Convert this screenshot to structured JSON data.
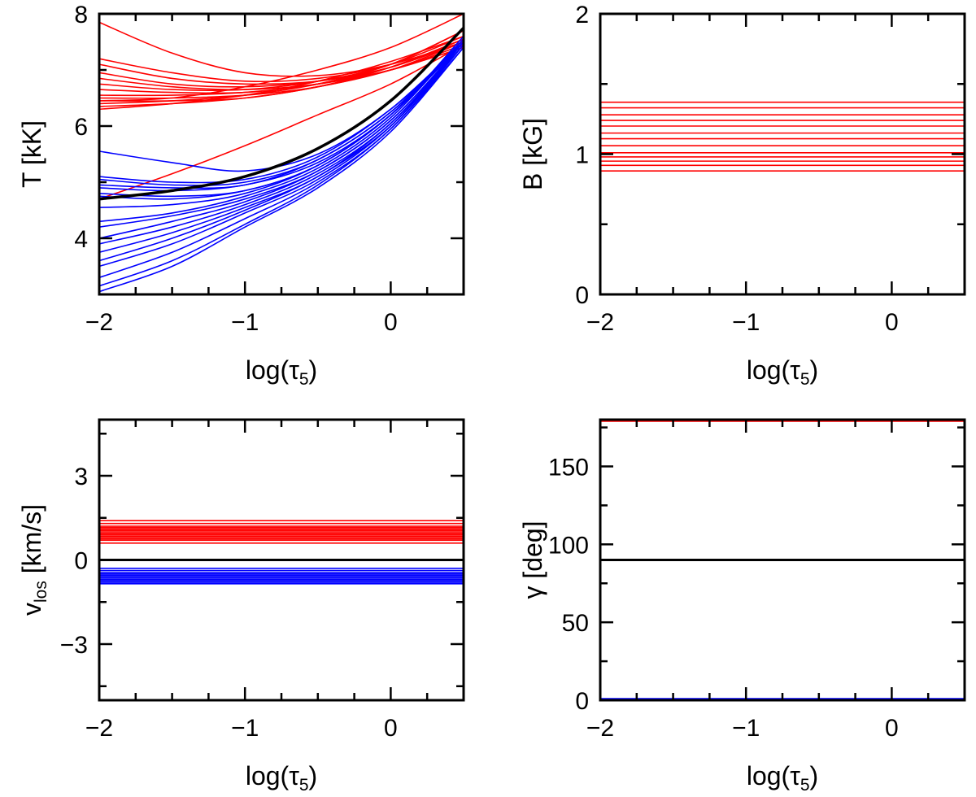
{
  "colors": {
    "red": "#ff0000",
    "blue": "#0000ff",
    "black": "#000000"
  },
  "chart_data": [
    {
      "type": "line",
      "panel": "top-left",
      "xlabel": {
        "base": "log(τ",
        "sub": "5",
        "close": ")"
      },
      "ylabel": {
        "main": "T [kK]",
        "sub": ""
      },
      "xlim": [
        -2,
        0.5
      ],
      "ylim": [
        3,
        8
      ],
      "xticks": [
        {
          "v": -2,
          "label": "−2"
        },
        {
          "v": -1,
          "label": "−1"
        },
        {
          "v": 0,
          "label": "0"
        }
      ],
      "yticks": [
        {
          "v": 4,
          "label": "4"
        },
        {
          "v": 6,
          "label": "6"
        },
        {
          "v": 8,
          "label": "8"
        }
      ],
      "x": [
        -2.0,
        -1.5,
        -1.0,
        -0.5,
        0.0,
        0.5
      ],
      "series": [
        {
          "color": "red",
          "values": [
            7.85,
            7.3,
            6.95,
            6.9,
            7.1,
            7.5
          ]
        },
        {
          "color": "red",
          "values": [
            7.2,
            6.95,
            6.8,
            6.85,
            7.1,
            7.6
          ]
        },
        {
          "color": "red",
          "values": [
            7.1,
            6.85,
            6.75,
            6.8,
            7.05,
            7.5
          ]
        },
        {
          "color": "red",
          "values": [
            6.95,
            6.75,
            6.7,
            6.8,
            7.05,
            7.55
          ]
        },
        {
          "color": "red",
          "values": [
            6.85,
            6.7,
            6.65,
            6.75,
            7.0,
            7.45
          ]
        },
        {
          "color": "red",
          "values": [
            6.75,
            6.65,
            6.65,
            6.8,
            7.1,
            7.7
          ]
        },
        {
          "color": "red",
          "values": [
            6.65,
            6.6,
            6.6,
            6.75,
            7.0,
            7.4
          ]
        },
        {
          "color": "red",
          "values": [
            6.55,
            6.55,
            6.6,
            6.75,
            7.05,
            7.55
          ]
        },
        {
          "color": "red",
          "values": [
            6.5,
            6.5,
            6.55,
            6.7,
            7.0,
            7.4
          ]
        },
        {
          "color": "red",
          "values": [
            6.45,
            6.45,
            6.5,
            6.7,
            7.0,
            7.5
          ]
        },
        {
          "color": "red",
          "values": [
            6.4,
            6.45,
            6.55,
            6.75,
            7.1,
            7.7
          ]
        },
        {
          "color": "red",
          "values": [
            6.35,
            6.4,
            6.5,
            6.7,
            7.05,
            7.55
          ]
        },
        {
          "color": "red",
          "values": [
            6.3,
            6.4,
            6.55,
            6.8,
            7.15,
            7.6
          ]
        },
        {
          "color": "red",
          "values": [
            6.45,
            6.5,
            6.7,
            7.0,
            7.4,
            8.0
          ]
        },
        {
          "color": "red",
          "values": [
            4.7,
            5.15,
            5.65,
            6.2,
            6.75,
            7.45
          ]
        },
        {
          "color": "blue",
          "values": [
            5.55,
            5.35,
            5.2,
            5.5,
            6.3,
            7.5
          ]
        },
        {
          "color": "blue",
          "values": [
            5.1,
            5.0,
            5.05,
            5.45,
            6.3,
            7.5
          ]
        },
        {
          "color": "blue",
          "values": [
            5.05,
            4.95,
            5.0,
            5.4,
            6.25,
            7.5
          ]
        },
        {
          "color": "blue",
          "values": [
            4.95,
            4.9,
            4.95,
            5.4,
            6.25,
            7.55
          ]
        },
        {
          "color": "blue",
          "values": [
            4.9,
            4.85,
            4.95,
            5.35,
            6.2,
            7.5
          ]
        },
        {
          "color": "blue",
          "values": [
            4.8,
            4.75,
            4.85,
            5.3,
            6.2,
            7.55
          ]
        },
        {
          "color": "blue",
          "values": [
            4.75,
            4.7,
            4.85,
            5.3,
            6.2,
            7.5
          ]
        },
        {
          "color": "blue",
          "values": [
            4.55,
            4.6,
            4.8,
            5.3,
            6.2,
            7.6
          ]
        },
        {
          "color": "blue",
          "values": [
            4.3,
            4.45,
            4.75,
            5.25,
            6.15,
            7.55
          ]
        },
        {
          "color": "blue",
          "values": [
            4.2,
            4.4,
            4.7,
            5.2,
            6.1,
            7.5
          ]
        },
        {
          "color": "blue",
          "values": [
            4.0,
            4.3,
            4.65,
            5.2,
            6.1,
            7.5
          ]
        },
        {
          "color": "blue",
          "values": [
            3.9,
            4.2,
            4.6,
            5.15,
            6.05,
            7.5
          ]
        },
        {
          "color": "blue",
          "values": [
            3.75,
            4.1,
            4.55,
            5.1,
            6.05,
            7.45
          ]
        },
        {
          "color": "blue",
          "values": [
            3.6,
            4.0,
            4.5,
            5.1,
            6.0,
            7.45
          ]
        },
        {
          "color": "blue",
          "values": [
            3.5,
            3.9,
            4.45,
            5.05,
            6.0,
            7.5
          ]
        },
        {
          "color": "blue",
          "values": [
            3.3,
            3.75,
            4.35,
            5.0,
            5.95,
            7.45
          ]
        },
        {
          "color": "blue",
          "values": [
            3.15,
            3.6,
            4.25,
            4.95,
            5.95,
            7.4
          ]
        },
        {
          "color": "blue",
          "values": [
            3.05,
            3.5,
            4.2,
            4.9,
            5.9,
            7.4
          ]
        },
        {
          "color": "black",
          "width": 3.5,
          "values": [
            4.7,
            4.85,
            5.1,
            5.6,
            6.45,
            7.75
          ]
        }
      ]
    },
    {
      "type": "line",
      "panel": "top-right",
      "xlabel": {
        "base": "log(τ",
        "sub": "5",
        "close": ")"
      },
      "ylabel": {
        "main": "B [kG]",
        "sub": ""
      },
      "xlim": [
        -2,
        0.5
      ],
      "ylim": [
        0,
        2
      ],
      "xticks": [
        {
          "v": -2,
          "label": "−2"
        },
        {
          "v": -1,
          "label": "−1"
        },
        {
          "v": 0,
          "label": "0"
        }
      ],
      "yticks": [
        {
          "v": 0,
          "label": "0"
        },
        {
          "v": 1,
          "label": "1"
        },
        {
          "v": 2,
          "label": "2"
        }
      ],
      "constant_lines": [
        {
          "color": "red",
          "y": 1.37
        },
        {
          "color": "red",
          "y": 1.33
        },
        {
          "color": "red",
          "y": 1.28
        },
        {
          "color": "red",
          "y": 1.24
        },
        {
          "color": "red",
          "y": 1.2
        },
        {
          "color": "red",
          "y": 1.15
        },
        {
          "color": "red",
          "y": 1.11
        },
        {
          "color": "red",
          "y": 1.06
        },
        {
          "color": "red",
          "y": 1.01
        },
        {
          "color": "red",
          "y": 0.98
        },
        {
          "color": "red",
          "y": 0.95
        },
        {
          "color": "red",
          "y": 0.92
        },
        {
          "color": "red",
          "y": 0.88
        },
        {
          "color": "blue",
          "y": 0.0
        }
      ]
    },
    {
      "type": "line",
      "panel": "bottom-left",
      "xlabel": {
        "base": "log(τ",
        "sub": "5",
        "close": ")"
      },
      "ylabel": {
        "main": "v",
        "sub": "los",
        "rest": " [km/s]"
      },
      "xlim": [
        -2,
        0.5
      ],
      "ylim": [
        -5,
        5
      ],
      "xticks": [
        {
          "v": -2,
          "label": "−2"
        },
        {
          "v": -1,
          "label": "−1"
        },
        {
          "v": 0,
          "label": "0"
        }
      ],
      "yticks": [
        {
          "v": -3,
          "label": "−3"
        },
        {
          "v": 0,
          "label": "0"
        },
        {
          "v": 3,
          "label": "3"
        }
      ],
      "constant_lines": [
        {
          "color": "red",
          "y": 1.4
        },
        {
          "color": "red",
          "y": 1.3
        },
        {
          "color": "red",
          "y": 1.2
        },
        {
          "color": "red",
          "y": 1.15
        },
        {
          "color": "red",
          "y": 1.1
        },
        {
          "color": "red",
          "y": 1.05
        },
        {
          "color": "red",
          "y": 1.0
        },
        {
          "color": "red",
          "y": 0.95
        },
        {
          "color": "red",
          "y": 0.9
        },
        {
          "color": "red",
          "y": 0.85
        },
        {
          "color": "red",
          "y": 0.8
        },
        {
          "color": "red",
          "y": 0.75
        },
        {
          "color": "red",
          "y": 0.7
        },
        {
          "color": "red",
          "y": 0.6
        },
        {
          "color": "black",
          "y": 0.0
        },
        {
          "color": "blue",
          "y": -0.3
        },
        {
          "color": "blue",
          "y": -0.38
        },
        {
          "color": "blue",
          "y": -0.45
        },
        {
          "color": "blue",
          "y": -0.5
        },
        {
          "color": "blue",
          "y": -0.55
        },
        {
          "color": "blue",
          "y": -0.6
        },
        {
          "color": "blue",
          "y": -0.65
        },
        {
          "color": "blue",
          "y": -0.7
        },
        {
          "color": "blue",
          "y": -0.75
        },
        {
          "color": "blue",
          "y": -0.8
        },
        {
          "color": "blue",
          "y": -0.85
        }
      ]
    },
    {
      "type": "line",
      "panel": "bottom-right",
      "xlabel": {
        "base": "log(τ",
        "sub": "5",
        "close": ")"
      },
      "ylabel": {
        "main": "γ [deg]",
        "sub": ""
      },
      "xlim": [
        -2,
        0.5
      ],
      "ylim": [
        0,
        180
      ],
      "xticks": [
        {
          "v": -2,
          "label": "−2"
        },
        {
          "v": -1,
          "label": "−1"
        },
        {
          "v": 0,
          "label": "0"
        }
      ],
      "yticks": [
        {
          "v": 0,
          "label": "0"
        },
        {
          "v": 50,
          "label": "50"
        },
        {
          "v": 100,
          "label": "100"
        },
        {
          "v": 150,
          "label": "150"
        }
      ],
      "constant_lines": [
        {
          "color": "red",
          "y": 179
        },
        {
          "color": "black",
          "y": 90
        },
        {
          "color": "blue",
          "y": 1
        }
      ]
    }
  ]
}
